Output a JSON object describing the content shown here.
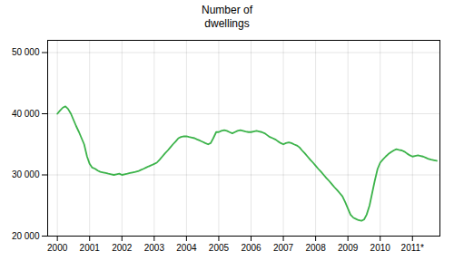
{
  "chart_data": {
    "type": "line",
    "title": "Number of\ndwellings",
    "color": "#3cb34a",
    "x": [
      2000.0,
      2000.08,
      2000.17,
      2000.25,
      2000.33,
      2000.42,
      2000.5,
      2000.58,
      2000.67,
      2000.75,
      2000.83,
      2000.92,
      2001.0,
      2001.08,
      2001.17,
      2001.25,
      2001.33,
      2001.42,
      2001.5,
      2001.58,
      2001.67,
      2001.75,
      2001.83,
      2001.92,
      2002.0,
      2002.08,
      2002.17,
      2002.25,
      2002.33,
      2002.42,
      2002.5,
      2002.58,
      2002.67,
      2002.75,
      2002.83,
      2002.92,
      2003.0,
      2003.08,
      2003.17,
      2003.25,
      2003.33,
      2003.42,
      2003.5,
      2003.58,
      2003.67,
      2003.75,
      2003.83,
      2003.92,
      2004.0,
      2004.08,
      2004.17,
      2004.25,
      2004.33,
      2004.42,
      2004.5,
      2004.58,
      2004.67,
      2004.75,
      2004.83,
      2004.92,
      2005.0,
      2005.08,
      2005.17,
      2005.25,
      2005.33,
      2005.42,
      2005.5,
      2005.58,
      2005.67,
      2005.75,
      2005.83,
      2005.92,
      2006.0,
      2006.08,
      2006.17,
      2006.25,
      2006.33,
      2006.42,
      2006.5,
      2006.58,
      2006.67,
      2006.75,
      2006.83,
      2006.92,
      2007.0,
      2007.08,
      2007.17,
      2007.25,
      2007.33,
      2007.42,
      2007.5,
      2007.58,
      2007.67,
      2007.75,
      2007.83,
      2007.92,
      2008.0,
      2008.08,
      2008.17,
      2008.25,
      2008.33,
      2008.42,
      2008.5,
      2008.58,
      2008.67,
      2008.75,
      2008.83,
      2008.92,
      2009.0,
      2009.08,
      2009.17,
      2009.25,
      2009.33,
      2009.42,
      2009.5,
      2009.58,
      2009.67,
      2009.75,
      2009.83,
      2009.92,
      2010.0,
      2010.08,
      2010.17,
      2010.25,
      2010.33,
      2010.42,
      2010.5,
      2010.58,
      2010.67,
      2010.75,
      2010.83,
      2010.92,
      2011.0,
      2011.08,
      2011.17,
      2011.25,
      2011.33,
      2011.42,
      2011.5,
      2011.58,
      2011.67,
      2011.75
    ],
    "values": [
      40000,
      40500,
      41000,
      41200,
      40800,
      40000,
      39000,
      38000,
      37000,
      36000,
      35000,
      33000,
      31800,
      31200,
      31000,
      30700,
      30500,
      30400,
      30300,
      30200,
      30100,
      30000,
      30100,
      30200,
      30000,
      30100,
      30200,
      30300,
      30400,
      30500,
      30600,
      30800,
      31000,
      31200,
      31400,
      31600,
      31800,
      32000,
      32500,
      33000,
      33500,
      34000,
      34500,
      35000,
      35500,
      36000,
      36200,
      36300,
      36300,
      36200,
      36100,
      36000,
      35800,
      35600,
      35400,
      35200,
      35000,
      35200,
      36000,
      37000,
      37000,
      37200,
      37300,
      37200,
      37000,
      36800,
      37000,
      37200,
      37300,
      37200,
      37100,
      37000,
      37000,
      37100,
      37200,
      37100,
      37000,
      36800,
      36500,
      36200,
      36000,
      35800,
      35500,
      35200,
      35000,
      35200,
      35300,
      35200,
      35000,
      34800,
      34500,
      34000,
      33500,
      33000,
      32500,
      32000,
      31500,
      31000,
      30500,
      30000,
      29500,
      29000,
      28500,
      28000,
      27500,
      27000,
      26500,
      25500,
      24500,
      23500,
      23000,
      22800,
      22600,
      22500,
      22700,
      23500,
      25000,
      27000,
      29000,
      31000,
      32000,
      32500,
      33000,
      33400,
      33700,
      34000,
      34200,
      34100,
      34000,
      33800,
      33500,
      33200,
      33000,
      33100,
      33200,
      33100,
      33000,
      32800,
      32600,
      32500,
      32400,
      32300
    ],
    "xlim": [
      1999.7,
      2011.85
    ],
    "xticks": [
      2000,
      2001,
      2002,
      2003,
      2004,
      2005,
      2006,
      2007,
      2008,
      2009,
      2010,
      {
        "value": 2011,
        "label": "2011*"
      }
    ],
    "ylim": [
      20000,
      52000
    ],
    "yticks": [
      {
        "value": 20000,
        "label": "20 000"
      },
      {
        "value": 30000,
        "label": "30 000"
      },
      {
        "value": 40000,
        "label": "40 000"
      },
      {
        "value": 50000,
        "label": "50 000"
      }
    ],
    "grid": true
  }
}
